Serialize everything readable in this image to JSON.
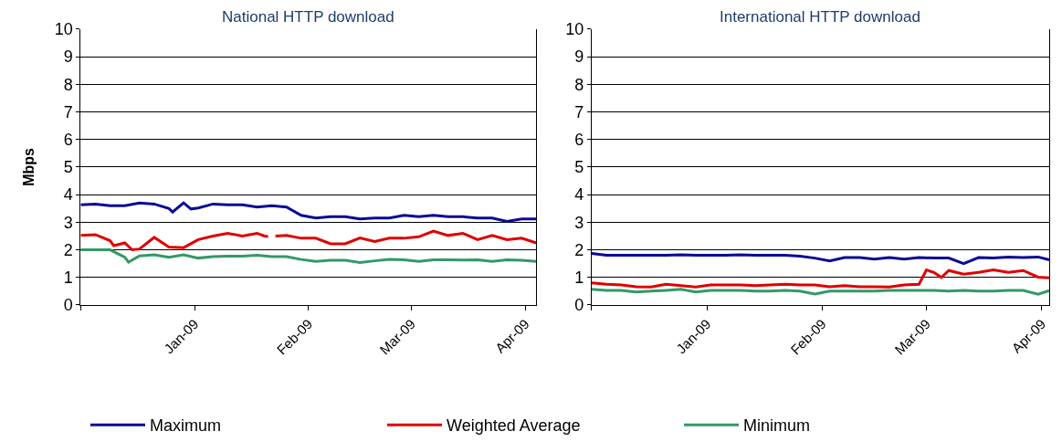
{
  "chart_data": [
    {
      "type": "line",
      "title": "National HTTP download",
      "ylabel": "Mbps",
      "ylim": [
        0,
        10
      ],
      "yticks": [
        0,
        1,
        2,
        3,
        4,
        5,
        6,
        7,
        8,
        9,
        10
      ],
      "xlim": [
        "2008-12-01",
        "2009-04-04"
      ],
      "xticks": [
        {
          "value": "2008-12-01",
          "label": null
        },
        {
          "value": "2009-01-01",
          "label": "Jan-09"
        },
        {
          "value": "2009-02-01",
          "label": "Feb-09"
        },
        {
          "value": "2009-03-01",
          "label": "Mar-09"
        },
        {
          "value": "2009-04-01",
          "label": "Apr-09"
        }
      ],
      "grid": "y",
      "legend": "bottom",
      "line_style": "solid",
      "marker": "none",
      "series": [
        {
          "name": "Maximum",
          "color": "#0a0a96",
          "x": [
            "2008-12-01",
            "2008-12-05",
            "2008-12-09",
            "2008-12-13",
            "2008-12-17",
            "2008-12-21",
            "2008-12-25",
            "2008-12-26",
            "2008-12-29",
            "2008-12-31",
            "2009-01-02",
            "2009-01-06",
            "2009-01-10",
            "2009-01-14",
            "2009-01-18",
            "2009-01-22",
            "2009-01-26",
            "2009-01-30",
            "2009-02-03",
            "2009-02-07",
            "2009-02-11",
            "2009-02-15",
            "2009-02-19",
            "2009-02-23",
            "2009-02-27",
            "2009-03-03",
            "2009-03-07",
            "2009-03-11",
            "2009-03-15",
            "2009-03-19",
            "2009-03-23",
            "2009-03-27",
            "2009-03-31",
            "2009-04-04"
          ],
          "values": [
            3.63,
            3.66,
            3.6,
            3.6,
            3.7,
            3.66,
            3.5,
            3.37,
            3.7,
            3.48,
            3.52,
            3.66,
            3.63,
            3.63,
            3.55,
            3.6,
            3.55,
            3.25,
            3.15,
            3.2,
            3.2,
            3.12,
            3.15,
            3.15,
            3.25,
            3.2,
            3.25,
            3.2,
            3.2,
            3.15,
            3.15,
            3.03,
            3.12,
            3.12
          ]
        },
        {
          "name": "Weighted Average",
          "color": "#e00000",
          "x": [
            "2008-12-01",
            "2008-12-05",
            "2008-12-09",
            "2008-12-10",
            "2008-12-13",
            "2008-12-15",
            "2008-12-17",
            "2008-12-21",
            "2008-12-25",
            "2008-12-29",
            "2009-01-02",
            "2009-01-06",
            "2009-01-10",
            "2009-01-14",
            "2009-01-18",
            "2009-01-20",
            "2009-01-21",
            "2009-01-22",
            "2009-01-23",
            "2009-01-26",
            "2009-01-30",
            "2009-02-03",
            "2009-02-07",
            "2009-02-11",
            "2009-02-15",
            "2009-02-19",
            "2009-02-23",
            "2009-02-27",
            "2009-03-03",
            "2009-03-07",
            "2009-03-11",
            "2009-03-15",
            "2009-03-19",
            "2009-03-23",
            "2009-03-27",
            "2009-03-31",
            "2009-04-04"
          ],
          "values": [
            2.52,
            2.55,
            2.33,
            2.15,
            2.25,
            2.0,
            2.03,
            2.45,
            2.1,
            2.08,
            2.37,
            2.5,
            2.6,
            2.5,
            2.6,
            2.5,
            2.48,
            null,
            2.5,
            2.52,
            2.42,
            2.42,
            2.22,
            2.22,
            2.43,
            2.3,
            2.42,
            2.42,
            2.47,
            2.68,
            2.52,
            2.6,
            2.37,
            2.52,
            2.37,
            2.42,
            2.25
          ]
        },
        {
          "name": "Minimum",
          "color": "#339966",
          "x": [
            "2008-12-01",
            "2008-12-05",
            "2008-12-09",
            "2008-12-13",
            "2008-12-14",
            "2008-12-17",
            "2008-12-21",
            "2008-12-25",
            "2008-12-29",
            "2009-01-02",
            "2009-01-06",
            "2009-01-10",
            "2009-01-14",
            "2009-01-18",
            "2009-01-22",
            "2009-01-26",
            "2009-01-30",
            "2009-02-03",
            "2009-02-07",
            "2009-02-11",
            "2009-02-15",
            "2009-02-19",
            "2009-02-23",
            "2009-02-27",
            "2009-03-03",
            "2009-03-07",
            "2009-03-11",
            "2009-03-15",
            "2009-03-19",
            "2009-03-23",
            "2009-03-27",
            "2009-03-31",
            "2009-04-04"
          ],
          "values": [
            2.0,
            2.0,
            2.0,
            1.73,
            1.55,
            1.78,
            1.82,
            1.73,
            1.82,
            1.7,
            1.75,
            1.77,
            1.77,
            1.8,
            1.75,
            1.75,
            1.65,
            1.58,
            1.62,
            1.62,
            1.54,
            1.6,
            1.65,
            1.64,
            1.58,
            1.64,
            1.64,
            1.63,
            1.64,
            1.58,
            1.64,
            1.62,
            1.58
          ]
        }
      ]
    },
    {
      "type": "line",
      "title": "International HTTP download",
      "ylim": [
        0,
        10
      ],
      "yticks": [
        0,
        1,
        2,
        3,
        4,
        5,
        6,
        7,
        8,
        9,
        10
      ],
      "xlim": [
        "2008-12-01",
        "2009-04-03"
      ],
      "xticks": [
        {
          "value": "2008-12-01",
          "label": null
        },
        {
          "value": "2009-01-01",
          "label": "Jan-09"
        },
        {
          "value": "2009-02-01",
          "label": "Feb-09"
        },
        {
          "value": "2009-03-01",
          "label": "Mar-09"
        },
        {
          "value": "2009-04-01",
          "label": "Apr-09"
        }
      ],
      "grid": "y",
      "legend": "bottom",
      "line_style": "solid",
      "marker": "none",
      "series": [
        {
          "name": "Maximum",
          "color": "#0a0a96",
          "x": [
            "2008-12-01",
            "2008-12-05",
            "2008-12-09",
            "2008-12-13",
            "2008-12-17",
            "2008-12-21",
            "2008-12-25",
            "2008-12-29",
            "2009-01-02",
            "2009-01-06",
            "2009-01-10",
            "2009-01-14",
            "2009-01-18",
            "2009-01-22",
            "2009-01-26",
            "2009-01-30",
            "2009-02-03",
            "2009-02-07",
            "2009-02-11",
            "2009-02-15",
            "2009-02-19",
            "2009-02-23",
            "2009-02-27",
            "2009-03-03",
            "2009-03-07",
            "2009-03-11",
            "2009-03-15",
            "2009-03-19",
            "2009-03-23",
            "2009-03-27",
            "2009-03-31",
            "2009-04-03"
          ],
          "values": [
            1.87,
            1.8,
            1.8,
            1.8,
            1.8,
            1.8,
            1.82,
            1.8,
            1.8,
            1.8,
            1.82,
            1.8,
            1.8,
            1.8,
            1.77,
            1.7,
            1.6,
            1.72,
            1.72,
            1.66,
            1.72,
            1.66,
            1.72,
            1.7,
            1.7,
            1.5,
            1.72,
            1.7,
            1.74,
            1.72,
            1.74,
            1.64
          ]
        },
        {
          "name": "Weighted Average",
          "color": "#e00000",
          "x": [
            "2008-12-01",
            "2008-12-05",
            "2008-12-09",
            "2008-12-13",
            "2008-12-17",
            "2008-12-21",
            "2008-12-25",
            "2008-12-29",
            "2009-01-02",
            "2009-01-06",
            "2009-01-10",
            "2009-01-14",
            "2009-01-18",
            "2009-01-22",
            "2009-01-26",
            "2009-01-30",
            "2009-02-03",
            "2009-02-07",
            "2009-02-11",
            "2009-02-15",
            "2009-02-19",
            "2009-02-23",
            "2009-02-27",
            "2009-03-01",
            "2009-03-03",
            "2009-03-05",
            "2009-03-07",
            "2009-03-11",
            "2009-03-15",
            "2009-03-19",
            "2009-03-23",
            "2009-03-27",
            "2009-03-31",
            "2009-04-03"
          ],
          "values": [
            0.8,
            0.75,
            0.73,
            0.66,
            0.65,
            0.75,
            0.7,
            0.65,
            0.73,
            0.73,
            0.73,
            0.7,
            0.73,
            0.75,
            0.73,
            0.73,
            0.66,
            0.7,
            0.66,
            0.66,
            0.65,
            0.73,
            0.75,
            1.27,
            1.18,
            1.0,
            1.25,
            1.12,
            1.18,
            1.27,
            1.18,
            1.25,
            1.01,
            0.98
          ]
        },
        {
          "name": "Minimum",
          "color": "#339966",
          "x": [
            "2008-12-01",
            "2008-12-05",
            "2008-12-09",
            "2008-12-13",
            "2008-12-17",
            "2008-12-21",
            "2008-12-25",
            "2008-12-29",
            "2009-01-02",
            "2009-01-06",
            "2009-01-10",
            "2009-01-14",
            "2009-01-18",
            "2009-01-22",
            "2009-01-26",
            "2009-01-30",
            "2009-02-03",
            "2009-02-07",
            "2009-02-11",
            "2009-02-15",
            "2009-02-19",
            "2009-02-23",
            "2009-02-27",
            "2009-03-03",
            "2009-03-07",
            "2009-03-11",
            "2009-03-15",
            "2009-03-19",
            "2009-03-23",
            "2009-03-27",
            "2009-03-31",
            "2009-04-03"
          ],
          "values": [
            0.57,
            0.53,
            0.53,
            0.47,
            0.5,
            0.53,
            0.57,
            0.47,
            0.53,
            0.53,
            0.53,
            0.5,
            0.5,
            0.53,
            0.5,
            0.4,
            0.5,
            0.5,
            0.5,
            0.5,
            0.53,
            0.53,
            0.53,
            0.53,
            0.5,
            0.53,
            0.5,
            0.5,
            0.53,
            0.53,
            0.39,
            0.52
          ]
        }
      ]
    }
  ]
}
